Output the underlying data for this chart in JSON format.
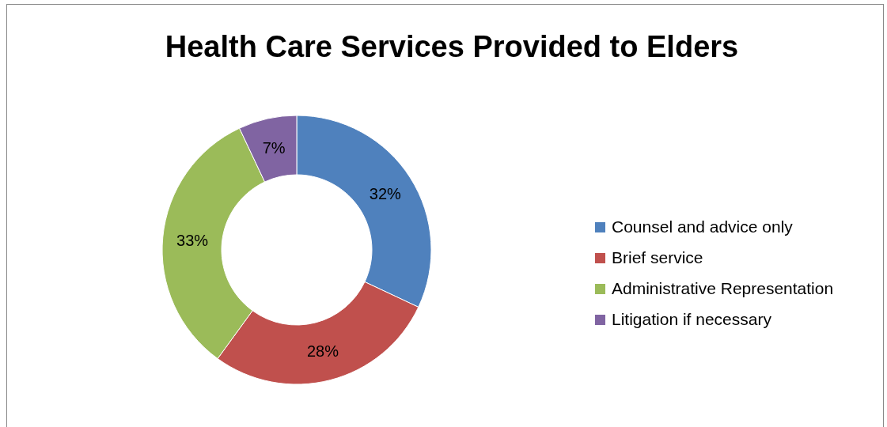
{
  "chart_data": {
    "type": "donut",
    "title": "Health Care Services Provided to Elders",
    "categories": [
      "Counsel and advice only",
      "Brief service",
      "Administrative Representation",
      "Litigation if necessary"
    ],
    "values": [
      32,
      28,
      33,
      7
    ],
    "colors": [
      "#4f81bd",
      "#c0504d",
      "#9bbb59",
      "#8064a2"
    ],
    "value_labels": [
      "32%",
      "28%",
      "33%",
      "7%"
    ],
    "legend": "right"
  }
}
